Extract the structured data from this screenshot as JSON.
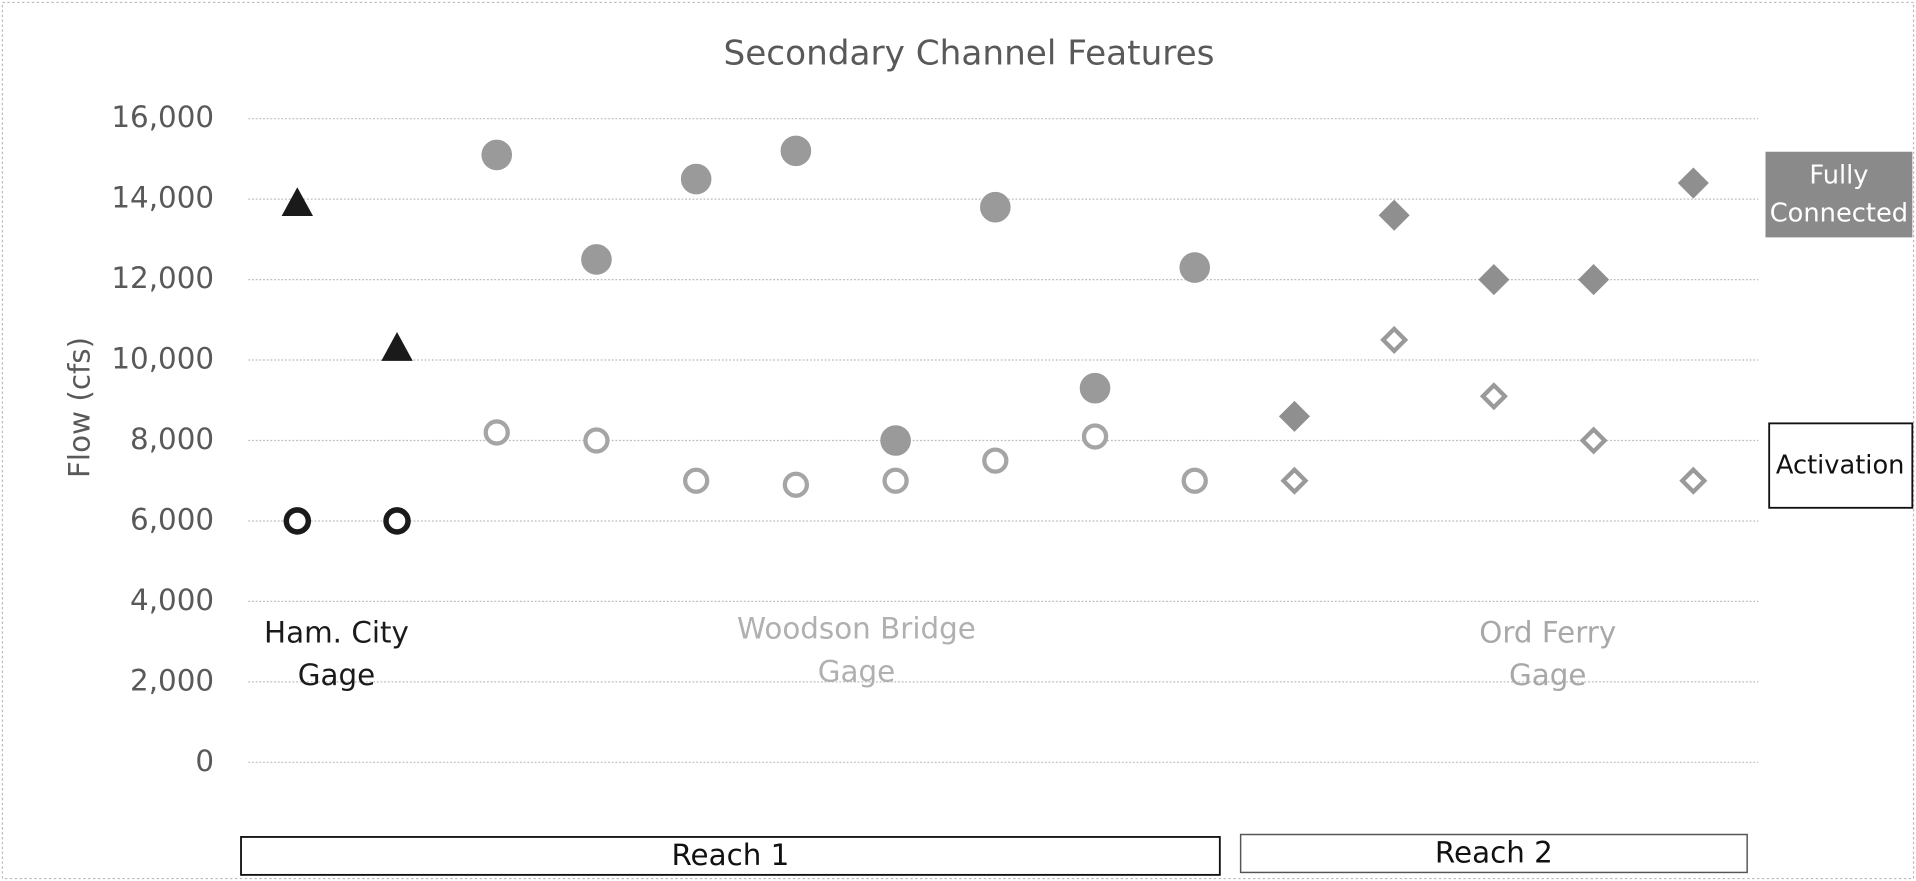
{
  "chart_data": {
    "type": "scatter",
    "title": "Secondary Channel Features",
    "y_label": "Flow (cfs)",
    "categories": [
      null,
      null,
      null,
      null,
      null,
      null,
      null,
      null,
      null,
      null,
      null,
      null,
      null,
      null,
      null
    ],
    "ylim": [
      0,
      16000
    ],
    "yticks": [
      0,
      {
        "value": 2000,
        "label": "2,000"
      },
      {
        "value": 4000,
        "label": "4,000"
      },
      {
        "value": 6000,
        "label": "6,000"
      },
      {
        "value": 8000,
        "label": "8,000"
      },
      {
        "value": 10000,
        "label": "10,000"
      },
      {
        "value": 12000,
        "label": "12,000"
      },
      {
        "value": 14000,
        "label": "14,000"
      },
      {
        "value": 16000,
        "label": "16,000"
      }
    ],
    "grid": true,
    "series": [
      {
        "color": "#1a1a1a",
        "marker": "triangle",
        "filled": true,
        "values": [
          13900,
          10300,
          null,
          null,
          null,
          null,
          null,
          null,
          null,
          null,
          null,
          null,
          null,
          null,
          null
        ]
      },
      {
        "color": "#1a1a1a",
        "marker": "circle",
        "filled": false,
        "values": [
          6000,
          6000,
          null,
          null,
          null,
          null,
          null,
          null,
          null,
          null,
          null,
          null,
          null,
          null,
          null
        ]
      },
      {
        "color": "#9a9a9a",
        "marker": "circle",
        "filled": true,
        "values": [
          null,
          null,
          15100,
          12500,
          14500,
          15200,
          8000,
          13800,
          9300,
          12300,
          null,
          null,
          null,
          null,
          null
        ]
      },
      {
        "color": "#a5a5a5",
        "marker": "circle",
        "filled": false,
        "values": [
          null,
          null,
          8200,
          8000,
          7000,
          6900,
          7000,
          7500,
          8100,
          7000,
          null,
          null,
          null,
          null,
          null
        ]
      },
      {
        "color": "#8f8f8f",
        "marker": "diamond",
        "filled": true,
        "values": [
          null,
          null,
          null,
          null,
          null,
          null,
          null,
          null,
          null,
          null,
          8600,
          13600,
          12000,
          12000,
          14400
        ]
      },
      {
        "color": "#9a9a9a",
        "marker": "diamond",
        "filled": false,
        "values": [
          null,
          null,
          null,
          null,
          null,
          null,
          null,
          null,
          null,
          null,
          7000,
          10500,
          9100,
          8000,
          7000
        ]
      }
    ],
    "annotations": {
      "gages": [
        {
          "lines": [
            "Ham. City",
            "Gage"
          ],
          "color": "#1a1a1a"
        },
        {
          "lines": [
            "Woodson Bridge",
            "Gage"
          ],
          "color": "#b0b0b0"
        },
        {
          "lines": [
            "Ord Ferry",
            "Gage"
          ],
          "color": "#a8a8a8"
        }
      ],
      "fully_connected": [
        "Fully",
        "Connected"
      ],
      "activation": "Activation",
      "reaches": [
        "Reach 1",
        "Reach 2"
      ]
    }
  }
}
